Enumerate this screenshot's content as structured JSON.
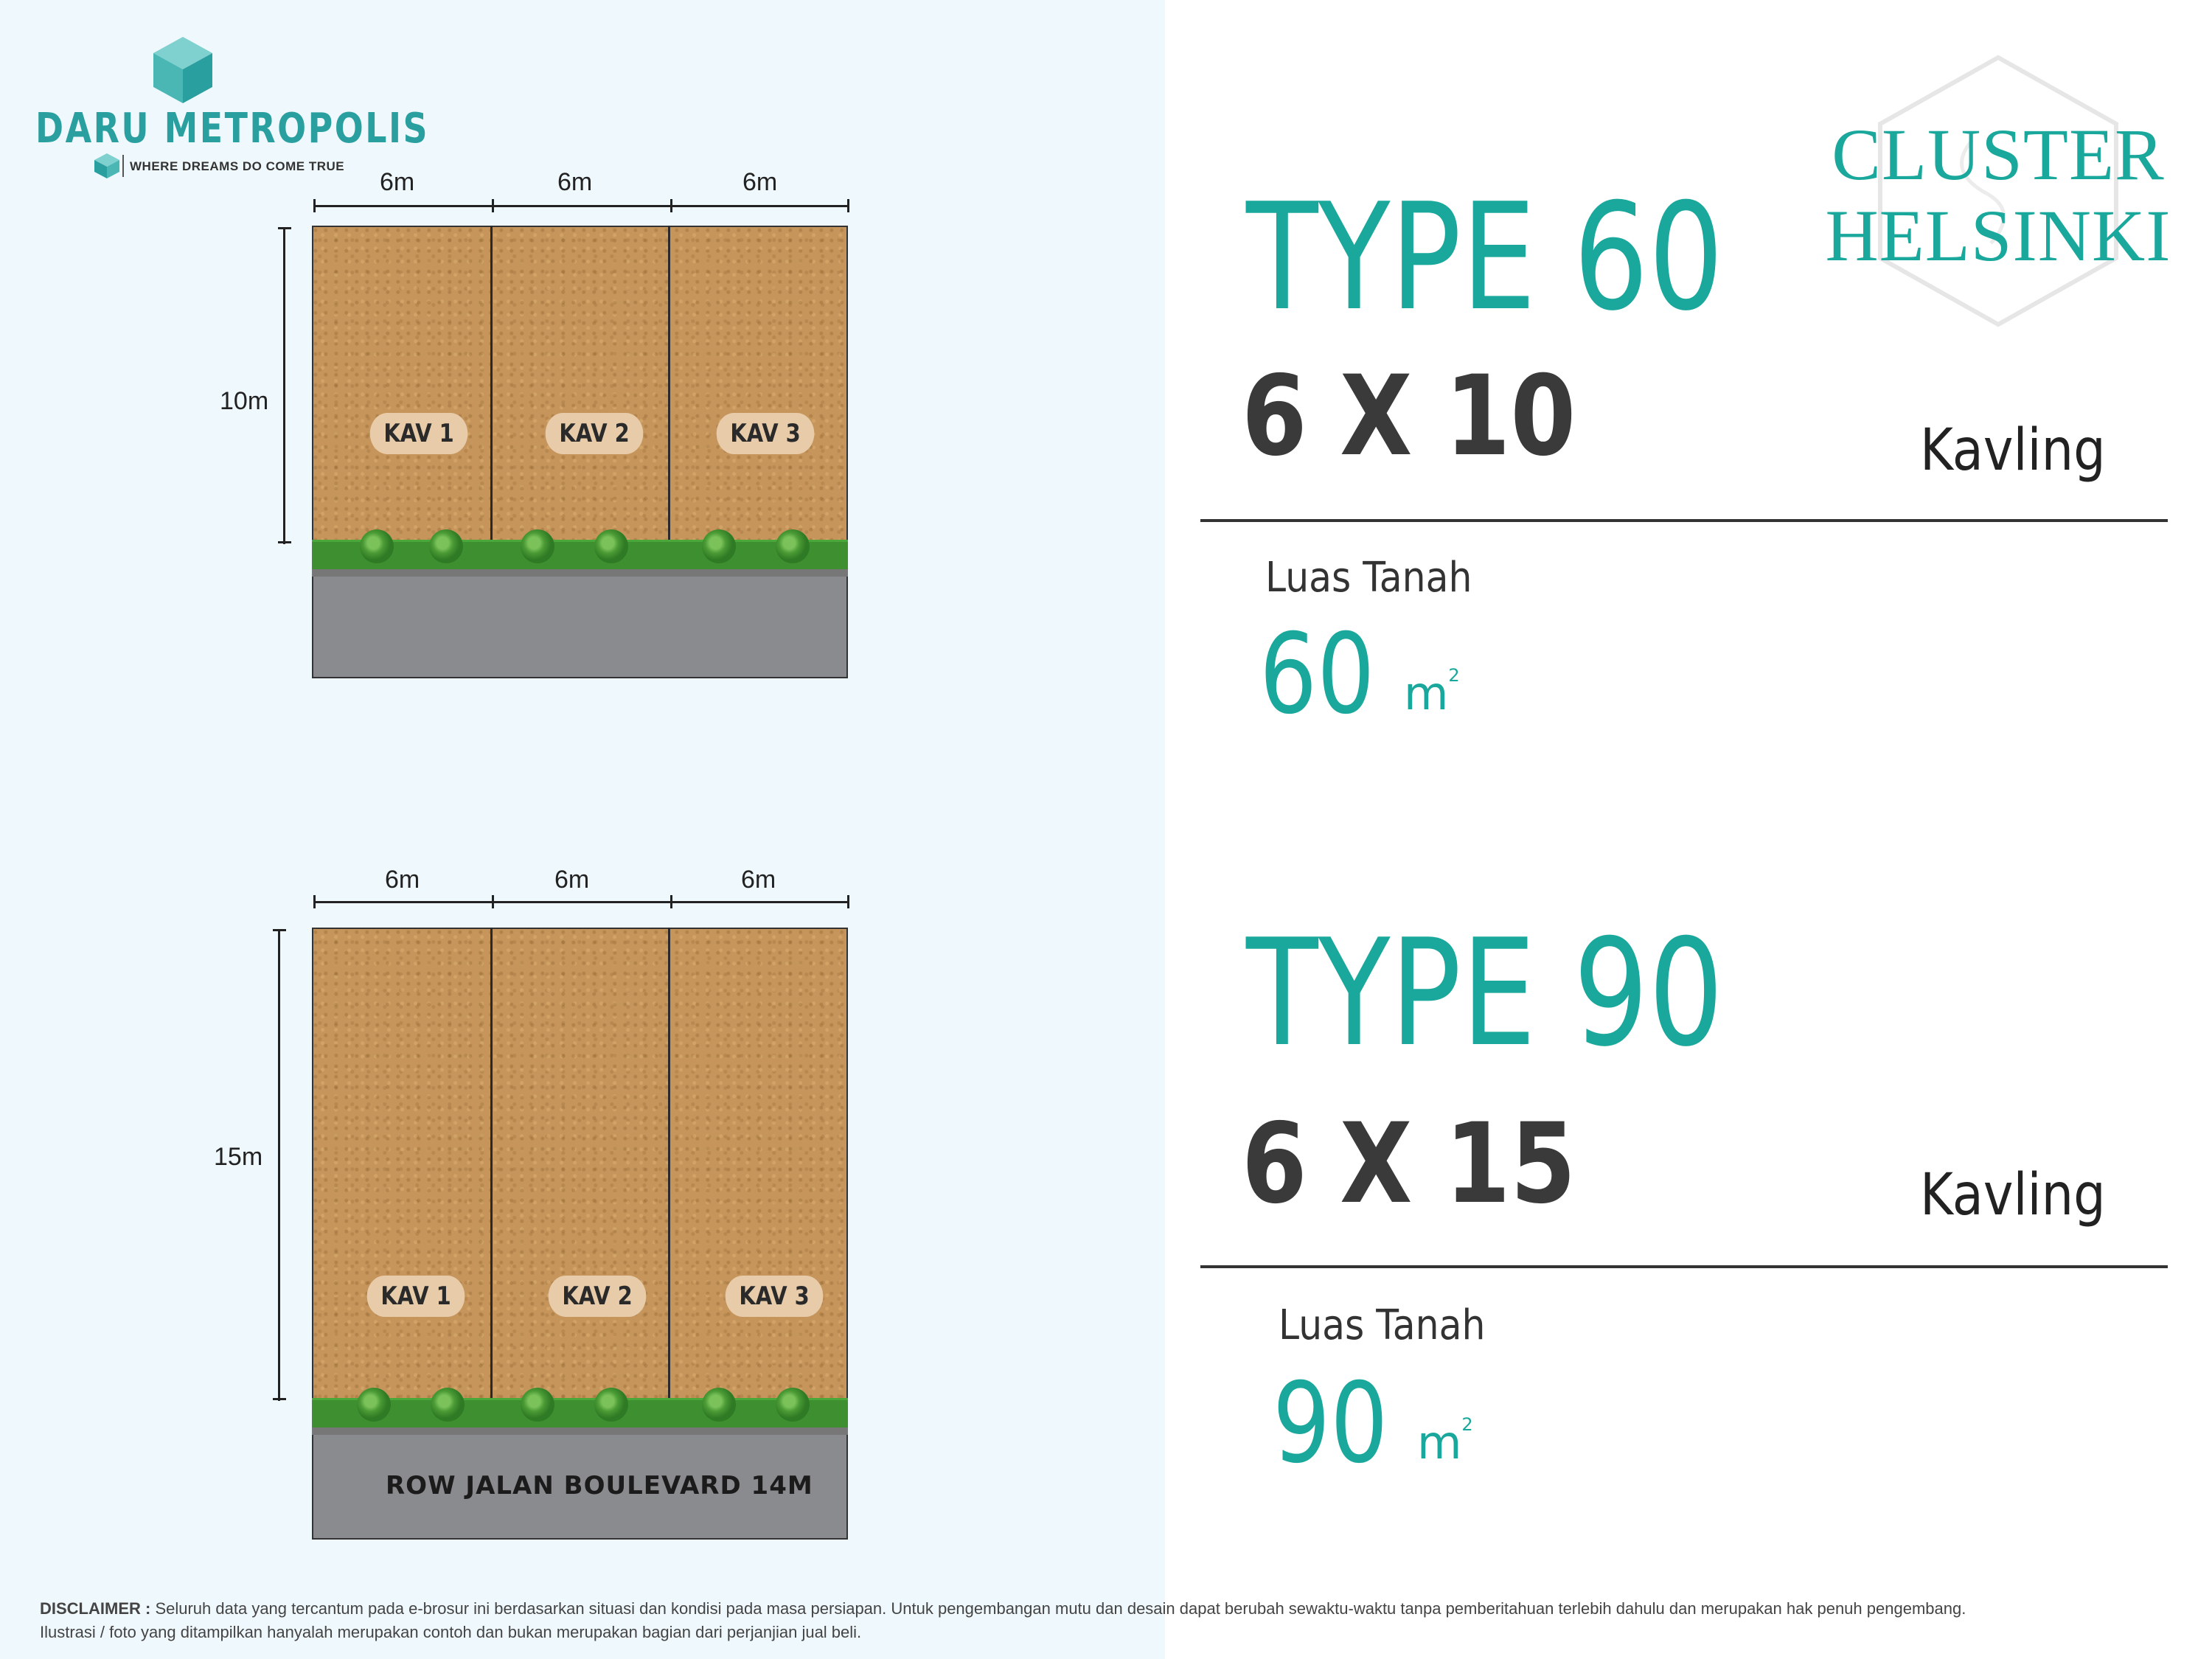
{
  "logo": {
    "name": "DARU METROPOLIS",
    "tagline": "WHERE DREAMS DO COME TRUE"
  },
  "cluster": {
    "line1": "CLUSTER",
    "line2": "HELSINKI",
    "color": "#1aa89c"
  },
  "plan60": {
    "widths": [
      "6m",
      "6m",
      "6m"
    ],
    "depth": "10m",
    "lots": [
      "KAV 1",
      "KAV 2",
      "KAV 3"
    ]
  },
  "plan90": {
    "widths": [
      "6m",
      "6m",
      "6m"
    ],
    "depth": "15m",
    "lots": [
      "KAV 1",
      "KAV 2",
      "KAV 3"
    ],
    "road": "ROW JALAN BOULEVARD 14M"
  },
  "type60": {
    "title": "TYPE 60",
    "dims": "6 X 10",
    "kavling": "Kavling",
    "luas_label": "Luas Tanah",
    "luas_value": "60",
    "unit": "m",
    "unit_sup": "2"
  },
  "type90": {
    "title": "TYPE 90",
    "dims": "6 X 15",
    "kavling": "Kavling",
    "luas_label": "Luas Tanah",
    "luas_value": "90",
    "unit": "m",
    "unit_sup": "2"
  },
  "disclaimer": {
    "label": "DISCLAIMER :",
    "line1": " Seluruh data yang tercantum pada e-brosur ini berdasarkan situasi dan kondisi pada masa persiapan. Untuk pengembangan mutu  dan desain dapat berubah sewaktu-waktu tanpa pemberitahuan terlebih dahulu dan merupakan hak penuh pengembang.",
    "line2": "Ilustrasi / foto yang ditampilkan hanyalah merupakan contoh dan bukan merupakan bagian dari perjanjian jual beli."
  },
  "colors": {
    "accent": "#1aa89c",
    "left_panel": "#eff8fc",
    "soil": "#c6955c",
    "grass": "#3d8f2f",
    "road": "#8a8b8e"
  }
}
